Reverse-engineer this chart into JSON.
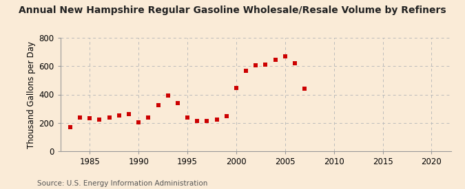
{
  "title": "Annual New Hampshire Regular Gasoline Wholesale/Resale Volume by Refiners",
  "ylabel": "Thousand Gallons per Day",
  "source": "Source: U.S. Energy Information Administration",
  "background_color": "#faebd7",
  "plot_bg_color": "#faebd7",
  "marker_color": "#cc0000",
  "years": [
    1983,
    1984,
    1985,
    1986,
    1987,
    1988,
    1989,
    1990,
    1991,
    1992,
    1993,
    1994,
    1995,
    1996,
    1997,
    1998,
    1999,
    2000,
    2001,
    2002,
    2003,
    2004,
    2005,
    2006,
    2007
  ],
  "values": [
    170,
    238,
    233,
    225,
    240,
    252,
    262,
    205,
    238,
    325,
    393,
    337,
    240,
    215,
    215,
    225,
    245,
    448,
    565,
    608,
    613,
    645,
    668,
    622,
    440
  ],
  "xlim": [
    1982,
    2022
  ],
  "ylim": [
    0,
    800
  ],
  "xticks": [
    1985,
    1990,
    1995,
    2000,
    2005,
    2010,
    2015,
    2020
  ],
  "yticks": [
    0,
    200,
    400,
    600,
    800
  ],
  "grid_color": "#bbbbbb",
  "vgrid_years": [
    1985,
    1990,
    1995,
    2000,
    2005,
    2010,
    2015,
    2020
  ],
  "title_fontsize": 10,
  "axis_fontsize": 8.5,
  "source_fontsize": 7.5,
  "marker_size": 4,
  "spine_color": "#999999"
}
